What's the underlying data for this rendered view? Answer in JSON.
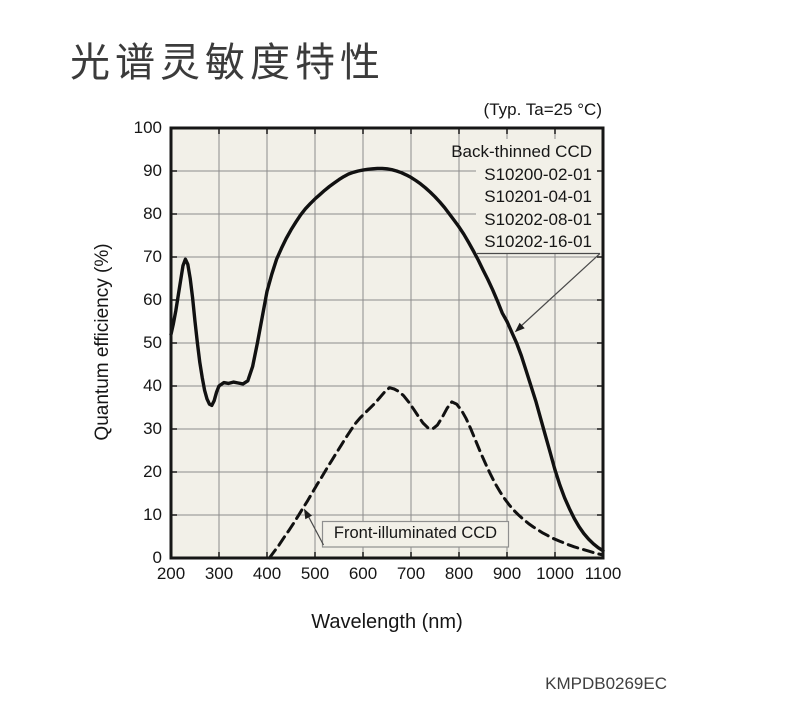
{
  "page": {
    "title": "光谱灵敏度特性",
    "doc_number": "KMPDB0269EC"
  },
  "chart_data": {
    "type": "line",
    "condition_note": "(Typ. Ta=25 °C)",
    "xlabel": "Wavelength (nm)",
    "ylabel": "Quantum efficiency (%)",
    "xlim": [
      200,
      1100
    ],
    "ylim": [
      0,
      100
    ],
    "x_ticks": [
      200,
      300,
      400,
      500,
      600,
      700,
      800,
      900,
      1000,
      1100
    ],
    "y_ticks": [
      0,
      10,
      20,
      30,
      40,
      50,
      60,
      70,
      80,
      90,
      100
    ],
    "grid": true,
    "legend": {
      "position": "top-right",
      "title": "Back-thinned CCD",
      "models": [
        "S10200-02-01",
        "S10201-04-01",
        "S10202-08-01",
        "S10202-16-01"
      ]
    },
    "series": [
      {
        "name": "Back-thinned CCD",
        "line_style": "solid",
        "points": [
          [
            200,
            52
          ],
          [
            205,
            54.5
          ],
          [
            210,
            57.5
          ],
          [
            215,
            61
          ],
          [
            220,
            64.5
          ],
          [
            225,
            68
          ],
          [
            230,
            69.5
          ],
          [
            235,
            68.3
          ],
          [
            240,
            65
          ],
          [
            245,
            60.5
          ],
          [
            250,
            55
          ],
          [
            255,
            50
          ],
          [
            260,
            45.5
          ],
          [
            265,
            42
          ],
          [
            270,
            39
          ],
          [
            275,
            37
          ],
          [
            280,
            35.8
          ],
          [
            285,
            35.5
          ],
          [
            290,
            36.6
          ],
          [
            295,
            38.6
          ],
          [
            300,
            40
          ],
          [
            310,
            40.8
          ],
          [
            320,
            40.6
          ],
          [
            330,
            40.9
          ],
          [
            340,
            40.7
          ],
          [
            350,
            40.5
          ],
          [
            360,
            41.2
          ],
          [
            370,
            44.5
          ],
          [
            380,
            50
          ],
          [
            390,
            56
          ],
          [
            400,
            62
          ],
          [
            410,
            66
          ],
          [
            420,
            69.5
          ],
          [
            430,
            72
          ],
          [
            440,
            74.3
          ],
          [
            450,
            76.3
          ],
          [
            460,
            78.1
          ],
          [
            470,
            79.8
          ],
          [
            480,
            81.2
          ],
          [
            490,
            82.4
          ],
          [
            500,
            83.5
          ],
          [
            510,
            84.5
          ],
          [
            520,
            85.5
          ],
          [
            530,
            86.4
          ],
          [
            540,
            87.2
          ],
          [
            550,
            88
          ],
          [
            560,
            88.7
          ],
          [
            570,
            89.3
          ],
          [
            580,
            89.7
          ],
          [
            590,
            90
          ],
          [
            600,
            90.2
          ],
          [
            610,
            90.4
          ],
          [
            620,
            90.5
          ],
          [
            630,
            90.6
          ],
          [
            640,
            90.6
          ],
          [
            650,
            90.5
          ],
          [
            660,
            90.3
          ],
          [
            670,
            90
          ],
          [
            680,
            89.6
          ],
          [
            690,
            89.1
          ],
          [
            700,
            88.5
          ],
          [
            710,
            87.8
          ],
          [
            720,
            87
          ],
          [
            730,
            86.1
          ],
          [
            740,
            85.1
          ],
          [
            750,
            84
          ],
          [
            760,
            82.8
          ],
          [
            770,
            81.5
          ],
          [
            780,
            80
          ],
          [
            790,
            78.5
          ],
          [
            800,
            77
          ],
          [
            810,
            75.3
          ],
          [
            820,
            73.4
          ],
          [
            830,
            71.4
          ],
          [
            840,
            69.3
          ],
          [
            850,
            67
          ],
          [
            860,
            64.8
          ],
          [
            870,
            62.4
          ],
          [
            880,
            59.8
          ],
          [
            890,
            57
          ],
          [
            900,
            55
          ],
          [
            910,
            52.5
          ],
          [
            920,
            50
          ],
          [
            930,
            47
          ],
          [
            940,
            43.5
          ],
          [
            950,
            40
          ],
          [
            960,
            36.5
          ],
          [
            970,
            32.5
          ],
          [
            980,
            28.5
          ],
          [
            990,
            24.5
          ],
          [
            1000,
            20.5
          ],
          [
            1010,
            17
          ],
          [
            1020,
            14
          ],
          [
            1030,
            11.5
          ],
          [
            1040,
            9.2
          ],
          [
            1050,
            7.3
          ],
          [
            1060,
            5.7
          ],
          [
            1070,
            4.4
          ],
          [
            1080,
            3.3
          ],
          [
            1090,
            2.4
          ],
          [
            1100,
            1.7
          ]
        ]
      },
      {
        "name": "Front-illuminated CCD",
        "line_style": "dashed",
        "points": [
          [
            405,
            0
          ],
          [
            415,
            1.5
          ],
          [
            425,
            3
          ],
          [
            435,
            4.7
          ],
          [
            445,
            6.3
          ],
          [
            455,
            8
          ],
          [
            465,
            9.8
          ],
          [
            475,
            11.6
          ],
          [
            485,
            13.4
          ],
          [
            495,
            15.3
          ],
          [
            505,
            17.2
          ],
          [
            515,
            19
          ],
          [
            525,
            20.9
          ],
          [
            535,
            22.7
          ],
          [
            545,
            24.5
          ],
          [
            555,
            26.3
          ],
          [
            565,
            28.1
          ],
          [
            575,
            29.8
          ],
          [
            585,
            31.4
          ],
          [
            595,
            32.7
          ],
          [
            605,
            33.8
          ],
          [
            615,
            34.9
          ],
          [
            625,
            36
          ],
          [
            635,
            37.3
          ],
          [
            645,
            38.6
          ],
          [
            655,
            39.6
          ],
          [
            665,
            39.3
          ],
          [
            675,
            38.7
          ],
          [
            685,
            37.7
          ],
          [
            695,
            36.3
          ],
          [
            705,
            34.7
          ],
          [
            715,
            33
          ],
          [
            725,
            31.4
          ],
          [
            735,
            30.3
          ],
          [
            745,
            30
          ],
          [
            755,
            30.9
          ],
          [
            765,
            32.7
          ],
          [
            775,
            34.8
          ],
          [
            785,
            36.3
          ],
          [
            795,
            35.8
          ],
          [
            805,
            34.4
          ],
          [
            815,
            32.4
          ],
          [
            825,
            29.9
          ],
          [
            835,
            27.2
          ],
          [
            845,
            24.5
          ],
          [
            855,
            22
          ],
          [
            865,
            19.6
          ],
          [
            875,
            17.4
          ],
          [
            885,
            15.5
          ],
          [
            895,
            13.8
          ],
          [
            905,
            12.3
          ],
          [
            915,
            11
          ],
          [
            925,
            9.9
          ],
          [
            935,
            8.9
          ],
          [
            945,
            8
          ],
          [
            955,
            7.2
          ],
          [
            965,
            6.5
          ],
          [
            975,
            5.8
          ],
          [
            985,
            5.2
          ],
          [
            995,
            4.6
          ],
          [
            1010,
            3.9
          ],
          [
            1025,
            3.2
          ],
          [
            1040,
            2.6
          ],
          [
            1055,
            2.1
          ],
          [
            1070,
            1.6
          ],
          [
            1085,
            1.1
          ],
          [
            1100,
            0.7
          ]
        ]
      }
    ],
    "callouts": [
      {
        "target_series": 0,
        "target_nm": 910,
        "label": "Back-thinned CCD legend"
      },
      {
        "target_series": 1,
        "target_nm": 477,
        "label": "Front-illuminated CCD"
      }
    ],
    "colors": {
      "curve": "#111111",
      "plot_bg": "#f2f0e8",
      "grid": "#8c8c8c",
      "border": "#161616",
      "page_bg": "#ffffff",
      "title_text": "#3b3b3b"
    }
  }
}
